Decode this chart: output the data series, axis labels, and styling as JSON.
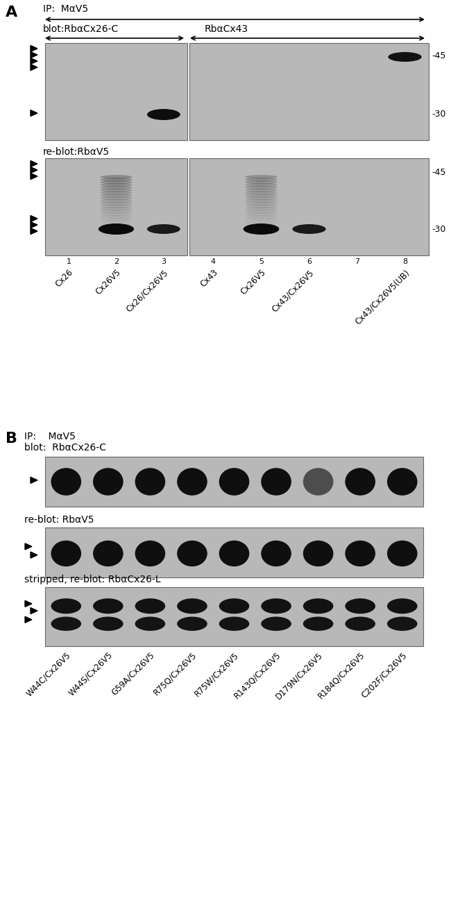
{
  "bg_color": "#ffffff",
  "gel_bg": "#b8b8b8",
  "black": "#000000",
  "panel_A": {
    "label": "A",
    "ip_text": "IP:  MαV5",
    "blot_label_left": "blot:RbαCx26-C",
    "blot_label_right": "RbαCx43",
    "reblot_text": "re-blot:RbαV5",
    "mw_top": [
      "-45",
      "-30"
    ],
    "mw_bot": [
      "-45",
      "-30"
    ],
    "lane_nums": [
      "1",
      "2",
      "3",
      "4",
      "5",
      "6",
      "7",
      "8"
    ],
    "sample_labels": [
      "Cx26",
      "Cx26V5",
      "Cx26/Cx26V5",
      "Cx43",
      "Cx26V5",
      "Cx43/Cx26V5",
      "",
      "Cx43/Cx26V5(UB)"
    ]
  },
  "panel_B": {
    "label": "B",
    "ip_text": "IP:    MαV5",
    "blot_text": "blot:  RbαCx26-C",
    "reblot_text": "re-blot: RbαV5",
    "stripped_text": "stripped, re-blot: RbαCx26-L",
    "sample_labels": [
      "W44C/Cx26V5",
      "W44S/Cx26V5",
      "G59A/Cx26V5",
      "R75Q/Cx26V5",
      "R75W/Cx26V5",
      "R143Q/Cx26V5",
      "D179N/Cx26V5",
      "R184Q/Cx26V5",
      "C202F/Cx26V5"
    ]
  }
}
